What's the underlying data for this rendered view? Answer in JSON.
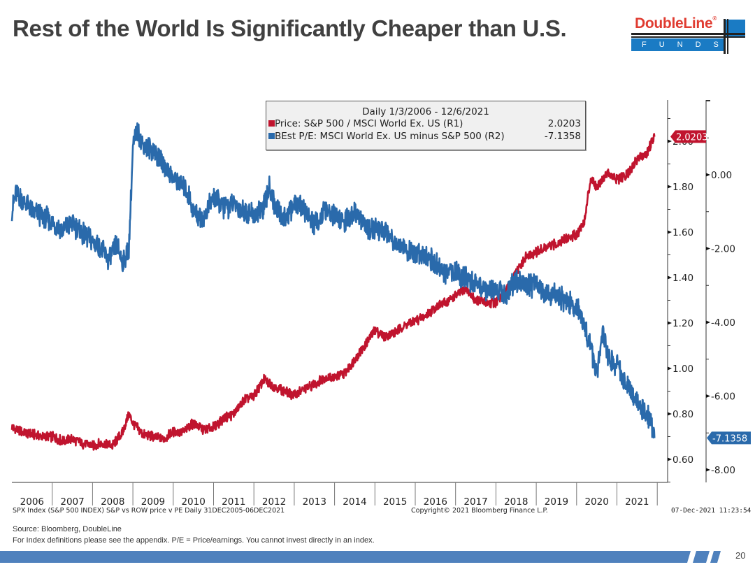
{
  "slide": {
    "title": "Rest of the World Is Significantly Cheaper than U.S.",
    "page_number": "20",
    "logo": {
      "word": "DoubleLine",
      "reg": "®",
      "funds": "FUNDS",
      "brand_red": "#e03c31",
      "brand_blue": "#1a7bc4"
    },
    "source_line": "Source: Bloomberg, DoubleLine",
    "disclaimer_line": "For Index definitions please see the appendix. P/E = Price/earnings. You cannot invest directly in an index.",
    "bloomberg_caption": "SPX Index (S&P 500 INDEX) S&P vs ROW price v PE  Daily 31DEC2005-06DEC2021",
    "copyright": "Copyright© 2021 Bloomberg Finance L.P.",
    "timestamp": "07-Dec-2021 11:23:54",
    "footer_bar_color": "#4f81bd"
  },
  "legend": {
    "title": "Daily 1/3/2006 - 12/6/2021",
    "items": [
      {
        "label": "Price: S&P 500 / MSCI World Ex. US (R1)",
        "value": "2.0203",
        "color": "#c0142e"
      },
      {
        "label": "BEst P/E: MSCI World Ex. US minus S&P 500 (R2)",
        "value": "-7.1358",
        "color": "#2a6aab"
      }
    ]
  },
  "chart_data": {
    "type": "line",
    "title": "Rest of the World Is Significantly Cheaper than U.S.",
    "subtitle": "Daily 1/3/2006 - 12/6/2021",
    "xlabel": "",
    "x_ticks": [
      "2006",
      "2007",
      "2008",
      "2009",
      "2010",
      "2011",
      "2012",
      "2013",
      "2014",
      "2015",
      "2016",
      "2017",
      "2018",
      "2019",
      "2020",
      "2021"
    ],
    "x_range": [
      2006.0,
      2022.0
    ],
    "grid": false,
    "legend_position": "top-center",
    "axes": {
      "R1": {
        "side": "right-inner",
        "range": [
          0.55,
          2.15
        ],
        "ticks": [
          0.6,
          0.8,
          1.0,
          1.2,
          1.4,
          1.6,
          1.8,
          2.0
        ],
        "tick_labels": [
          "0.60",
          "0.80",
          "1.00",
          "1.20",
          "1.40",
          "1.60",
          "1.80",
          "2.00"
        ]
      },
      "R2": {
        "side": "right-outer",
        "range": [
          -8.4,
          2.0
        ],
        "ticks": [
          0,
          -2,
          -4,
          -6,
          -8
        ],
        "tick_labels": [
          "0.00",
          "-2.00",
          "-4.00",
          "-6.00",
          "-8.00"
        ]
      }
    },
    "series": [
      {
        "name": "Price: S&P 500 / MSCI World Ex. US (R1)",
        "axis": "R1",
        "color": "#c0142e",
        "last_value": 2.0203,
        "x": [
          2006.0,
          2006.25,
          2006.5,
          2006.75,
          2007.0,
          2007.25,
          2007.5,
          2007.75,
          2008.0,
          2008.25,
          2008.5,
          2008.75,
          2008.9,
          2009.0,
          2009.25,
          2009.5,
          2009.75,
          2010.0,
          2010.25,
          2010.5,
          2010.75,
          2011.0,
          2011.25,
          2011.5,
          2011.75,
          2012.0,
          2012.25,
          2012.5,
          2012.75,
          2013.0,
          2013.25,
          2013.5,
          2013.75,
          2014.0,
          2014.25,
          2014.5,
          2014.75,
          2015.0,
          2015.25,
          2015.5,
          2015.75,
          2016.0,
          2016.25,
          2016.5,
          2016.75,
          2017.0,
          2017.25,
          2017.5,
          2017.75,
          2018.0,
          2018.25,
          2018.5,
          2018.75,
          2019.0,
          2019.25,
          2019.5,
          2019.75,
          2020.0,
          2020.2,
          2020.35,
          2020.5,
          2020.75,
          2021.0,
          2021.25,
          2021.5,
          2021.75,
          2021.93
        ],
        "values": [
          0.74,
          0.72,
          0.71,
          0.7,
          0.7,
          0.68,
          0.69,
          0.67,
          0.66,
          0.67,
          0.66,
          0.72,
          0.8,
          0.76,
          0.71,
          0.7,
          0.69,
          0.72,
          0.72,
          0.76,
          0.73,
          0.74,
          0.78,
          0.8,
          0.86,
          0.88,
          0.95,
          0.92,
          0.9,
          0.88,
          0.91,
          0.93,
          0.96,
          0.96,
          0.98,
          1.04,
          1.1,
          1.17,
          1.14,
          1.16,
          1.19,
          1.21,
          1.23,
          1.27,
          1.29,
          1.32,
          1.35,
          1.3,
          1.29,
          1.29,
          1.34,
          1.42,
          1.49,
          1.51,
          1.53,
          1.55,
          1.57,
          1.59,
          1.65,
          1.84,
          1.8,
          1.86,
          1.83,
          1.85,
          1.92,
          1.95,
          2.02
        ]
      },
      {
        "name": "BEst P/E: MSCI World Ex. US minus S&P 500 (R2)",
        "axis": "R2",
        "color": "#2a6aab",
        "last_value": -7.1358,
        "x": [
          2006.0,
          2006.1,
          2006.25,
          2006.4,
          2006.5,
          2006.75,
          2007.0,
          2007.25,
          2007.5,
          2007.75,
          2008.0,
          2008.2,
          2008.4,
          2008.6,
          2008.75,
          2008.9,
          2009.0,
          2009.1,
          2009.25,
          2009.5,
          2009.75,
          2010.0,
          2010.25,
          2010.4,
          2010.5,
          2010.75,
          2011.0,
          2011.25,
          2011.5,
          2011.75,
          2012.0,
          2012.25,
          2012.4,
          2012.5,
          2012.75,
          2013.0,
          2013.25,
          2013.5,
          2013.75,
          2014.0,
          2014.25,
          2014.5,
          2014.75,
          2015.0,
          2015.25,
          2015.5,
          2015.75,
          2016.0,
          2016.25,
          2016.5,
          2016.75,
          2017.0,
          2017.25,
          2017.5,
          2017.75,
          2018.0,
          2018.25,
          2018.5,
          2018.75,
          2019.0,
          2019.25,
          2019.5,
          2019.75,
          2020.0,
          2020.15,
          2020.3,
          2020.5,
          2020.65,
          2020.8,
          2021.0,
          2021.2,
          2021.4,
          2021.6,
          2021.75,
          2021.85,
          2021.93
        ],
        "values": [
          -1.0,
          -0.5,
          -0.7,
          -0.8,
          -1.0,
          -1.1,
          -1.3,
          -1.5,
          -1.3,
          -1.6,
          -1.8,
          -2.0,
          -2.3,
          -1.9,
          -2.4,
          -2.0,
          0.7,
          1.2,
          0.8,
          0.7,
          0.3,
          -0.1,
          -0.3,
          -0.6,
          -1.0,
          -1.2,
          -0.6,
          -0.9,
          -0.8,
          -1.0,
          -1.1,
          -0.9,
          -0.3,
          -0.8,
          -1.2,
          -0.8,
          -0.9,
          -1.4,
          -1.0,
          -1.1,
          -1.3,
          -1.0,
          -1.4,
          -1.5,
          -1.5,
          -1.8,
          -2.0,
          -2.2,
          -2.1,
          -2.4,
          -2.7,
          -2.6,
          -2.8,
          -3.0,
          -3.1,
          -3.1,
          -3.2,
          -2.9,
          -3.0,
          -3.0,
          -3.2,
          -3.3,
          -3.4,
          -3.6,
          -3.9,
          -4.5,
          -5.4,
          -4.3,
          -5.0,
          -5.2,
          -5.6,
          -6.0,
          -6.3,
          -6.5,
          -6.7,
          -7.14
        ]
      }
    ]
  }
}
